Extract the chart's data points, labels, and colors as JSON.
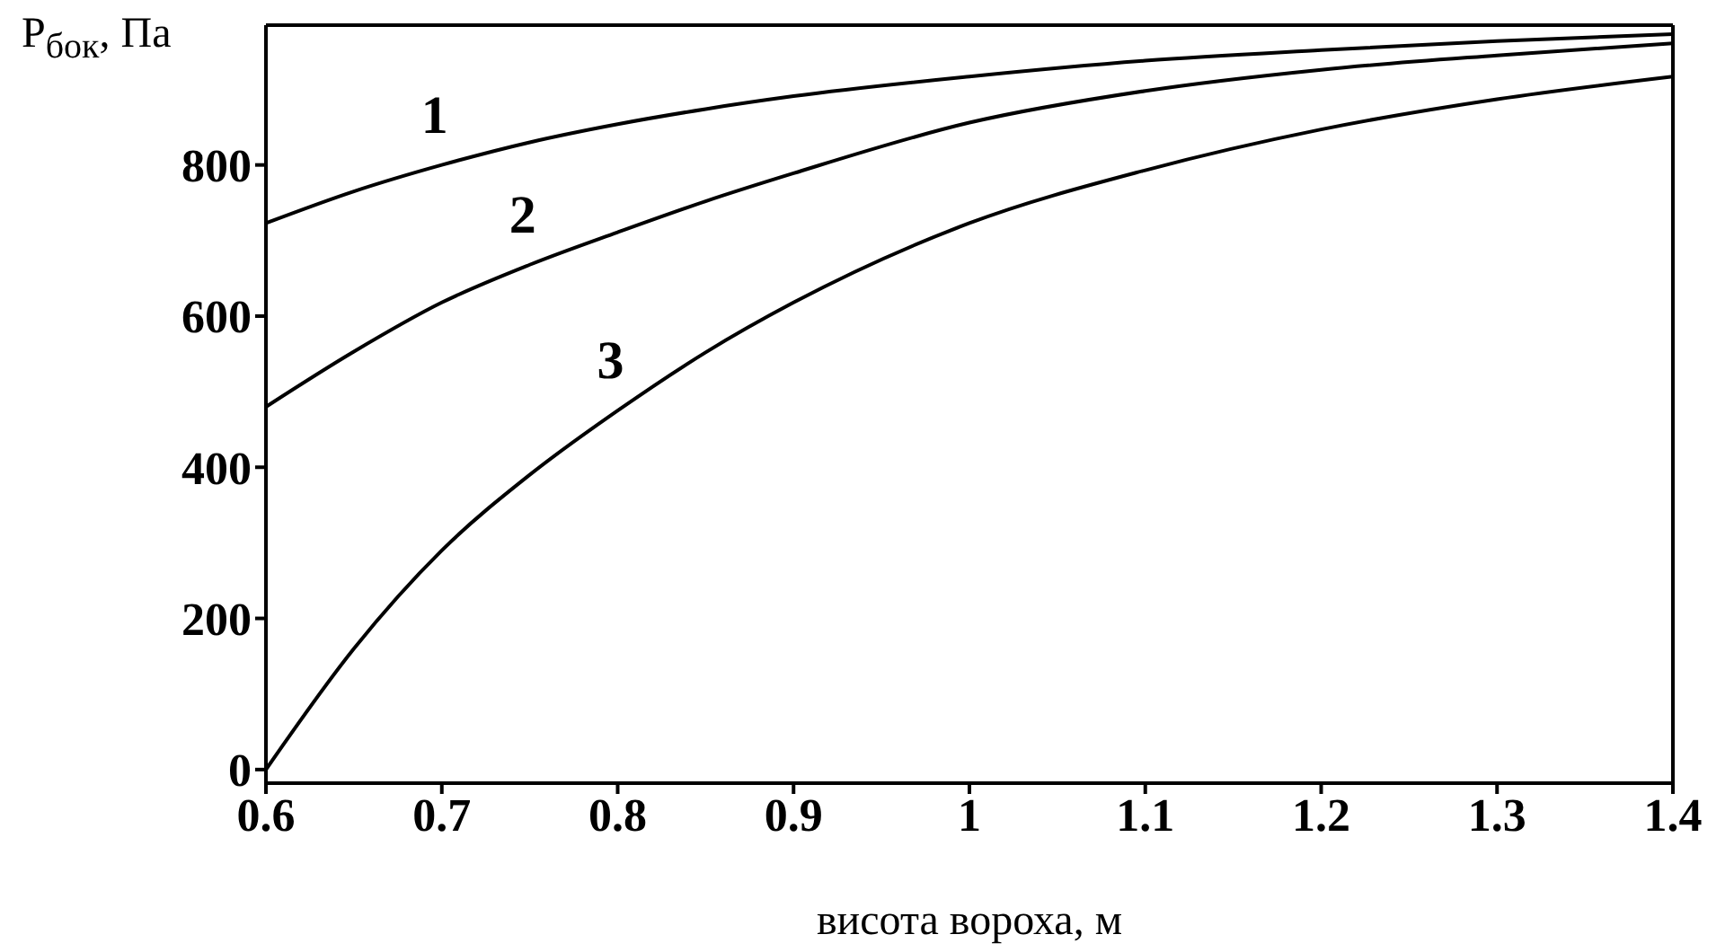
{
  "chart_data": {
    "type": "line",
    "xlabel": "висота вороха, м",
    "ylabel": "P$_{бок}$, Па",
    "xlim": [
      0.6,
      1.4
    ],
    "xticks": [
      0.6,
      0.7,
      0.8,
      0.9,
      1,
      1.1,
      1.2,
      1.3,
      1.4
    ],
    "ylim": [
      -18,
      985
    ],
    "yticks": [
      0,
      200,
      400,
      600,
      800
    ],
    "marker": "none",
    "line_style": "solid",
    "x": [
      0.6,
      0.65,
      0.7,
      0.75,
      0.8,
      0.85,
      0.9,
      1.0,
      1.1,
      1.2,
      1.3,
      1.4
    ],
    "series": [
      {
        "name": "1",
        "color": "#000000",
        "values": [
          723,
          765,
          800,
          830,
          854,
          874,
          891,
          917,
          938,
          952,
          964,
          973
        ]
      },
      {
        "name": "2",
        "color": "#000000",
        "values": [
          480,
          553,
          618,
          668,
          711,
          752,
          789,
          856,
          898,
          926,
          945,
          961
        ]
      },
      {
        "name": "3",
        "color": "#000000",
        "values": [
          0,
          160,
          290,
          390,
          475,
          552,
          618,
          723,
          793,
          847,
          887,
          917
        ]
      }
    ]
  }
}
